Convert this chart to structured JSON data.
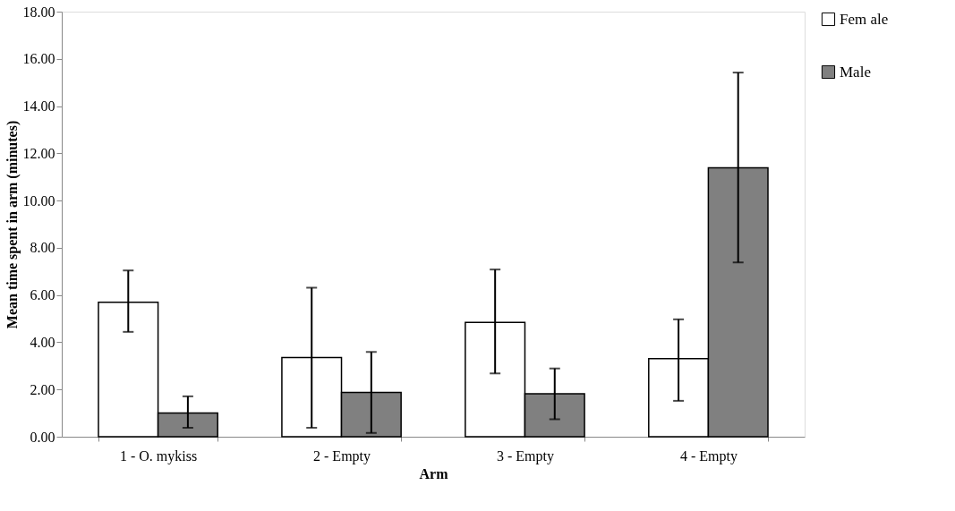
{
  "chart_data": {
    "type": "bar",
    "xlabel": "Arm",
    "ylabel": "Mean  time  spent  in  arm  (minutes)",
    "categories": [
      "1 - O. mykiss",
      "2 - Empty",
      "3 - Empty",
      "4 - Empty"
    ],
    "series": [
      {
        "name": "Fem ale",
        "color": "#ffffff",
        "values": [
          5.69,
          3.35,
          4.84,
          3.31
        ],
        "errors": [
          [
            4.44,
            7.04
          ],
          [
            0.38,
            6.31
          ],
          [
            2.68,
            7.08
          ],
          [
            1.52,
            4.97
          ]
        ]
      },
      {
        "name": "Male",
        "color": "#808080",
        "values": [
          1.0,
          1.88,
          1.82,
          11.39
        ],
        "errors": [
          [
            0.38,
            1.71
          ],
          [
            0.16,
            3.59
          ],
          [
            0.74,
            2.89
          ],
          [
            7.38,
            15.42
          ]
        ]
      }
    ],
    "ylim": [
      0,
      18
    ],
    "yticks": [
      {
        "value": 0,
        "label": "0.00"
      },
      {
        "value": 2,
        "label": "2.00"
      },
      {
        "value": 4,
        "label": "4.00"
      },
      {
        "value": 6,
        "label": "6.00"
      },
      {
        "value": 8,
        "label": "8.00"
      },
      {
        "value": 10,
        "label": "10.00"
      },
      {
        "value": 12,
        "label": "12.00"
      },
      {
        "value": 14,
        "label": "14.00"
      },
      {
        "value": 16,
        "label": "16.00"
      },
      {
        "value": 18,
        "label": "18.00"
      }
    ],
    "grid": false,
    "legend": "top right"
  }
}
